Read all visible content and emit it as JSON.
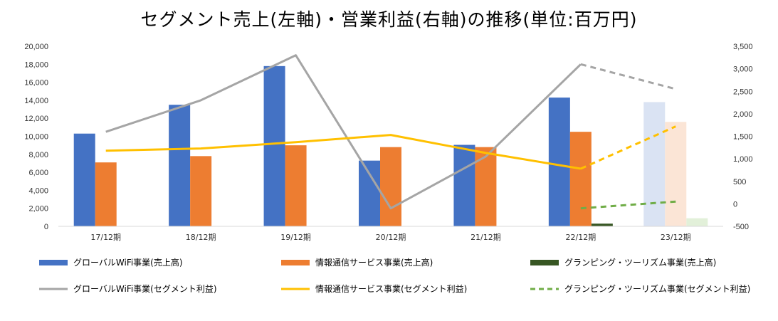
{
  "chart_data": {
    "type": "bar",
    "title": "セグメント売上(左軸)・営業利益(右軸)の推移(単位:百万円)",
    "categories": [
      "17/12期",
      "18/12期",
      "19/12期",
      "20/12期",
      "21/12期",
      "22/12期",
      "23/12期"
    ],
    "forecast_categories": [
      "23/12期"
    ],
    "left_axis": {
      "min": 0,
      "max": 20000,
      "step": 2000,
      "ticks": [
        "0",
        "2,000",
        "4,000",
        "6,000",
        "8,000",
        "10,000",
        "12,000",
        "14,000",
        "16,000",
        "18,000",
        "20,000"
      ]
    },
    "right_axis": {
      "min": -500,
      "max": 3500,
      "step": 500,
      "ticks": [
        "-500",
        "0",
        "500",
        "1,000",
        "1,500",
        "2,000",
        "2,500",
        "3,000",
        "3,500"
      ],
      "negative_color": "#ff0000"
    },
    "bar_series": [
      {
        "name": "グローバルWiFi事業(売上高)",
        "color": "#4472c4",
        "forecast_color": "#dae3f3",
        "values": [
          10300,
          13500,
          17800,
          7300,
          9050,
          14300,
          13800
        ]
      },
      {
        "name": "情報通信サービス事業(売上高)",
        "color": "#ed7d31",
        "forecast_color": "#fbe5d6",
        "values": [
          7100,
          7800,
          9000,
          8800,
          8800,
          10500,
          11600
        ]
      },
      {
        "name": "グランピング・ツーリズム事業(売上高)",
        "color": "#375623",
        "forecast_color": "#e2f0d9",
        "values": [
          null,
          null,
          null,
          null,
          null,
          300,
          900
        ]
      }
    ],
    "line_series": [
      {
        "name": "グローバルWiFi事業(セグメント利益)",
        "color": "#a5a5a5",
        "dashed": false,
        "values": [
          1600,
          2300,
          3300,
          -100,
          1050,
          3100,
          2550
        ],
        "forecast_dashed_from": 5
      },
      {
        "name": "情報通信サービス事業(セグメント利益)",
        "color": "#ffc000",
        "dashed": false,
        "values": [
          1180,
          1230,
          1370,
          1530,
          1130,
          780,
          1720
        ],
        "forecast_dashed_from": 5
      },
      {
        "name": "グランピング・ツーリズム事業(セグメント利益)",
        "color": "#70ad47",
        "dashed": true,
        "values": [
          null,
          null,
          null,
          null,
          null,
          -100,
          50
        ],
        "forecast_dashed_from": 5
      }
    ],
    "legend_position": "bottom",
    "grid": false
  }
}
